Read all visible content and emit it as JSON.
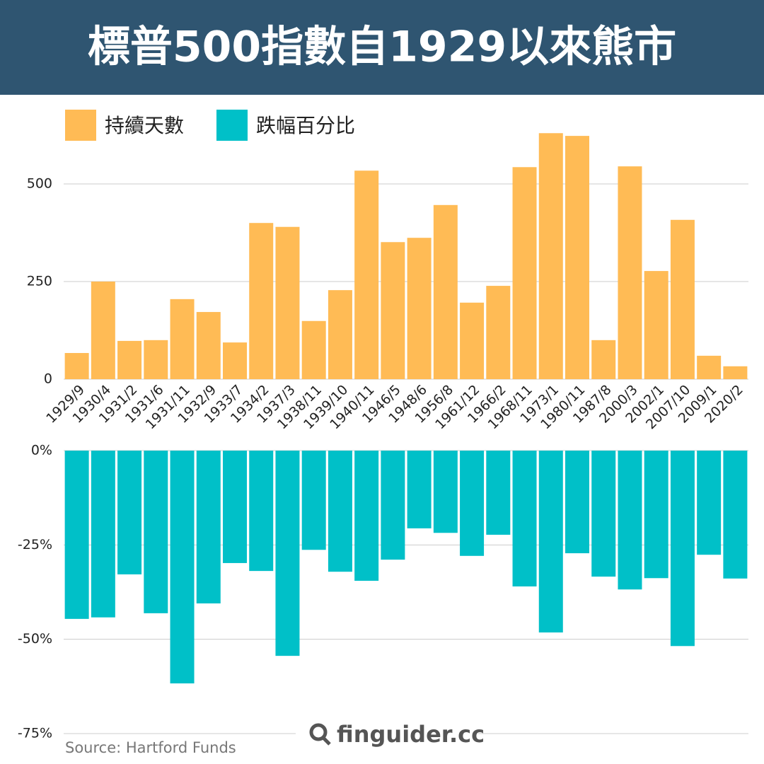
{
  "chart_data": {
    "type": "bar",
    "title": "標普500指數自1929以來熊市",
    "categories": [
      "1929/9",
      "1930/4",
      "1931/2",
      "1931/6",
      "1931/11",
      "1932/9",
      "1933/7",
      "1934/2",
      "1937/3",
      "1938/11",
      "1939/10",
      "1940/11",
      "1946/5",
      "1948/6",
      "1956/8",
      "1961/12",
      "1966/2",
      "1968/11",
      "1973/1",
      "1980/11",
      "1987/8",
      "2000/3",
      "2002/1",
      "2007/10",
      "2009/1",
      "2020/2"
    ],
    "series": [
      {
        "name": "持續天數",
        "color": "#ffbb55",
        "values": [
          67,
          250,
          98,
          100,
          205,
          172,
          94,
          400,
          390,
          149,
          228,
          534,
          351,
          362,
          446,
          196,
          239,
          543,
          630,
          623,
          100,
          545,
          277,
          408,
          60,
          33
        ]
      },
      {
        "name": "跌幅百分比",
        "color": "#00c0c8",
        "axis": "y2",
        "values": [
          -44.6,
          -44.2,
          -32.8,
          -43.1,
          -61.7,
          -40.5,
          -29.8,
          -31.9,
          -54.4,
          -26.3,
          -32.1,
          -34.5,
          -28.9,
          -20.6,
          -21.8,
          -27.9,
          -22.3,
          -36.0,
          -48.2,
          -27.2,
          -33.4,
          -36.8,
          -33.8,
          -51.8,
          -27.6,
          -33.9
        ]
      }
    ],
    "ylim": [
      0,
      700
    ],
    "yticks": [
      0,
      250,
      500
    ],
    "y2lim": [
      -75,
      0
    ],
    "y2ticks": [
      {
        "value": 0,
        "label": "0%"
      },
      {
        "value": -25,
        "label": "-25%"
      },
      {
        "value": -50,
        "label": "-50%"
      },
      {
        "value": -75,
        "label": "-75%"
      }
    ],
    "grid": true,
    "source": "Source: Hartford Funds",
    "watermark": "finguider.cc"
  }
}
